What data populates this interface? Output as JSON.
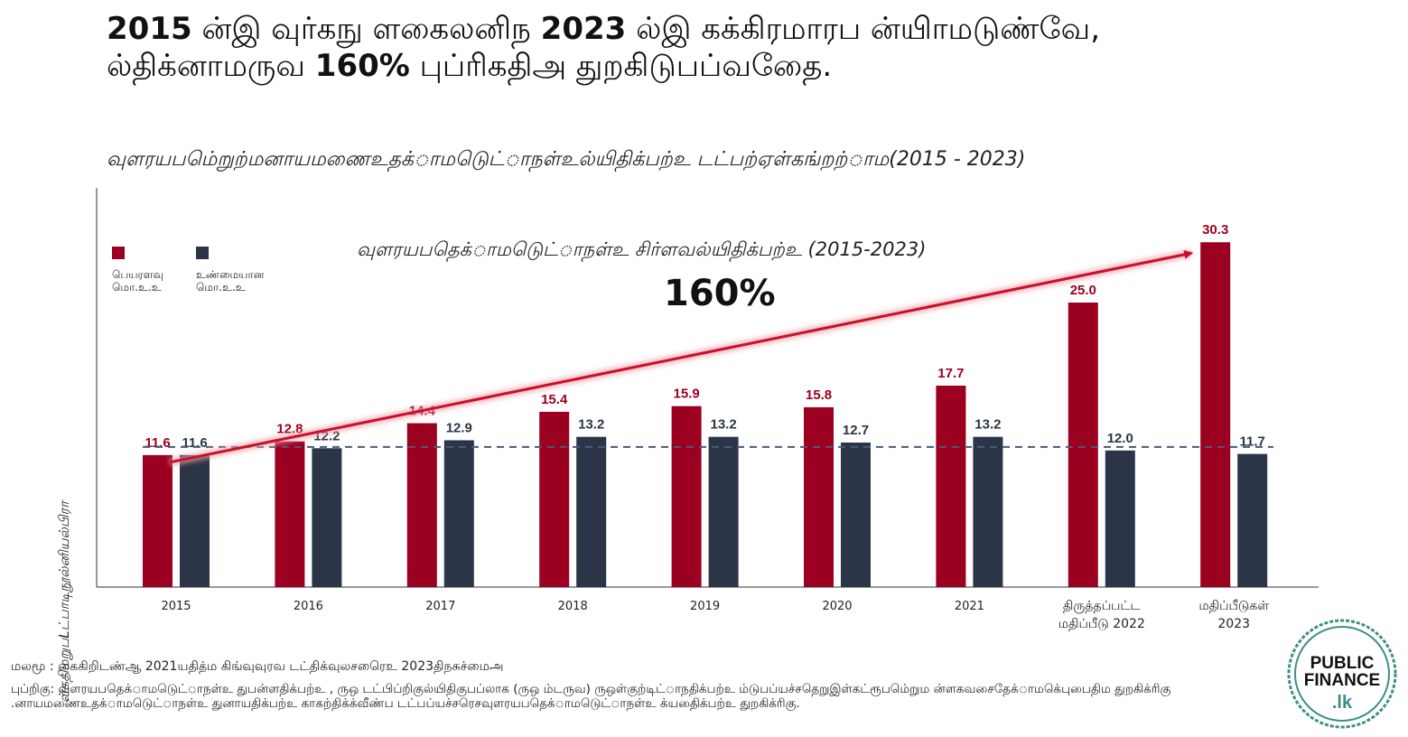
{
  "title": {
    "part1_bold": "2015",
    "part2": " ன்இ வுர்கநு ளகைலனிந ",
    "part3_bold": "2023",
    "part4": " ல்இ கக்கிரமாரப ன்யிாமடுண்வே, ல்திக்னாமருவ ",
    "part5_bold": "160%",
    "part6": " புப்ரிகதிஅ துறகிடுபப்வதைே."
  },
  "subtitle": "வுளரயபமெ்றுற்மனாயமணைஉதக்ாமடுெட்ாநள்உல்யிதிக்பற்உ டட்பற்ஏள்கங்றற்ாம(2015 - 2023)",
  "y_axis_label": "ள்கதிமறுபLட்பாடிநூல்னியல்பிரா",
  "legend": {
    "nominal": "பெயரளவு\nமொ.உ.உ",
    "real": "உண்மையான\nமொ.உ.உ"
  },
  "annotation": {
    "text": "வுளரயபதெக்ாமடுெட்ாநள்உ சிர்ளவல்யிதிக்பற்உ (2015-2023)",
    "percent": "160%"
  },
  "source": "மலமூ : கைகிறிடண்ஆ 2021யதித்ம கிங்வுவுரவ டட்திக்வுலசரெைஉ 2023திநசுச்மைஅ",
  "note": "புப்றிகு: வுளரயபதெக்ாமடுெட்ாநள்உ துபன்ளதிக்பற்உ , ருஒ டட்பிப்றிகுல்யிதிகுபப்லாக (ருஒ ம்டருவ) ருஒள்குற்டிட்ாநதிக்பற்உ ம்டுபப்யச்சதெறுஇள்கட்ரூபமெ்றும ன்ளகவசைதேக்ாமகெ்புபைதிம துறகிக்ரிகு .னாயமணைஉதக்ாமடுெட்ாநள்உ துனாயதிக்பற்உ காகற்திக்க்வீண்ப டட்பப்யச்சரெசவுளரயபதெக்ாமடுெட்ாநள்உ க்யதைிக்பற்உ துறகிக்ரிகு.",
  "logo": {
    "line1": "PUBLIC",
    "line2": "FINANCE",
    "line3": ".lk"
  },
  "colors": {
    "nominal": "#9b0020",
    "real": "#2b3547",
    "trend": "#c8102e",
    "dashed": "#4a5a78"
  },
  "chart_data": {
    "type": "bar",
    "categories": [
      "2015",
      "2016",
      "2017",
      "2018",
      "2019",
      "2020",
      "2021",
      "திருத்தப்பட்ட மதிப்பீடு 2022",
      "மதிப்பீடுகள் 2023"
    ],
    "category_lines": [
      [
        "2015"
      ],
      [
        "2016"
      ],
      [
        "2017"
      ],
      [
        "2018"
      ],
      [
        "2019"
      ],
      [
        "2020"
      ],
      [
        "2021"
      ],
      [
        "திருத்தப்பட்ட",
        "மதிப்பீடு 2022"
      ],
      [
        "மதிப்பீடுகள்",
        "2023"
      ]
    ],
    "series": [
      {
        "name": "பெயரளவு மொ.உ.உ",
        "values": [
          11.6,
          12.8,
          14.4,
          15.4,
          15.9,
          15.8,
          17.7,
          25.0,
          30.3
        ]
      },
      {
        "name": "உண்மையான மொ.உ.உ",
        "values": [
          11.6,
          12.2,
          12.9,
          13.2,
          13.2,
          12.7,
          13.2,
          12.0,
          11.7
        ]
      }
    ],
    "reference_line": 11.6,
    "trend_from": 11.6,
    "trend_to": 30.3,
    "ylim": [
      0,
      32
    ],
    "grid": false,
    "legend_position": "top-left"
  }
}
